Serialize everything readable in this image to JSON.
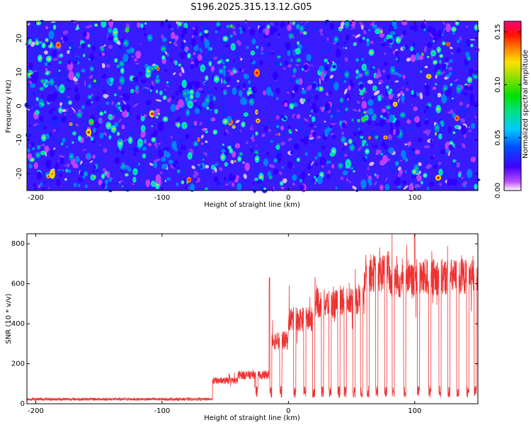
{
  "title": "S196.2025.315.13.12.G05",
  "chart_data": [
    {
      "type": "heatmap",
      "name": "spectrogram",
      "xlabel": "Height of straight line (km)",
      "ylabel": "Frequency (Hz)",
      "xlim": [
        -207,
        150
      ],
      "ylim": [
        -25,
        25
      ],
      "xticks": [
        -200,
        -100,
        0,
        100
      ],
      "yticks": [
        -20,
        -10,
        0,
        10,
        20
      ],
      "colorbar": {
        "label": "Normalized spectral amplitude",
        "range": [
          0,
          0.16
        ],
        "ticks": [
          0.0,
          0.05,
          0.1,
          0.15
        ],
        "tick_labels": [
          "0.00",
          "0.05",
          "0.10",
          "0.15"
        ],
        "colors": [
          "#ffffff",
          "#c040ff",
          "#3000ff",
          "#0080ff",
          "#00e0e0",
          "#00e040",
          "#e0e000",
          "#ff8000",
          "#ff0000",
          "#ff0080"
        ]
      },
      "description_values": {
        "background_level": 0.02,
        "typical_peak": 0.06,
        "max_peak": 0.12
      }
    },
    {
      "type": "line",
      "name": "snr",
      "xlabel": "Height of straight line (km)",
      "ylabel": "SNR (10 * v/v)",
      "xlim": [
        -207,
        150
      ],
      "ylim": [
        0,
        850
      ],
      "xticks": [
        -200,
        -100,
        0,
        100
      ],
      "yticks": [
        0,
        200,
        400,
        600,
        800
      ],
      "color": "#ee3333",
      "segments": [
        {
          "x0": -207,
          "x1": -60,
          "level": 20
        },
        {
          "x0": -60,
          "x1": -40,
          "level": 120
        },
        {
          "x0": -40,
          "x1": -15,
          "level": 150
        },
        {
          "x0": -15,
          "x1": 0,
          "level": 330
        },
        {
          "x0": 0,
          "x1": 20,
          "level": 440
        },
        {
          "x0": 20,
          "x1": 40,
          "level": 520
        },
        {
          "x0": 40,
          "x1": 60,
          "level": 540
        },
        {
          "x0": 60,
          "x1": 80,
          "level": 680
        },
        {
          "x0": 80,
          "x1": 100,
          "level": 640
        },
        {
          "x0": 100,
          "x1": 150,
          "level": 660
        }
      ],
      "dropouts": [
        -62,
        -25,
        -14,
        -6,
        5,
        13,
        20,
        27,
        33,
        40,
        45,
        52,
        58,
        63,
        70,
        77,
        83,
        92,
        103,
        112,
        120,
        127,
        134,
        142,
        148
      ],
      "peaks": [
        {
          "x": -15,
          "y": 630
        },
        {
          "x": 79,
          "y": 760
        },
        {
          "x": 100,
          "y": 850
        }
      ]
    }
  ]
}
